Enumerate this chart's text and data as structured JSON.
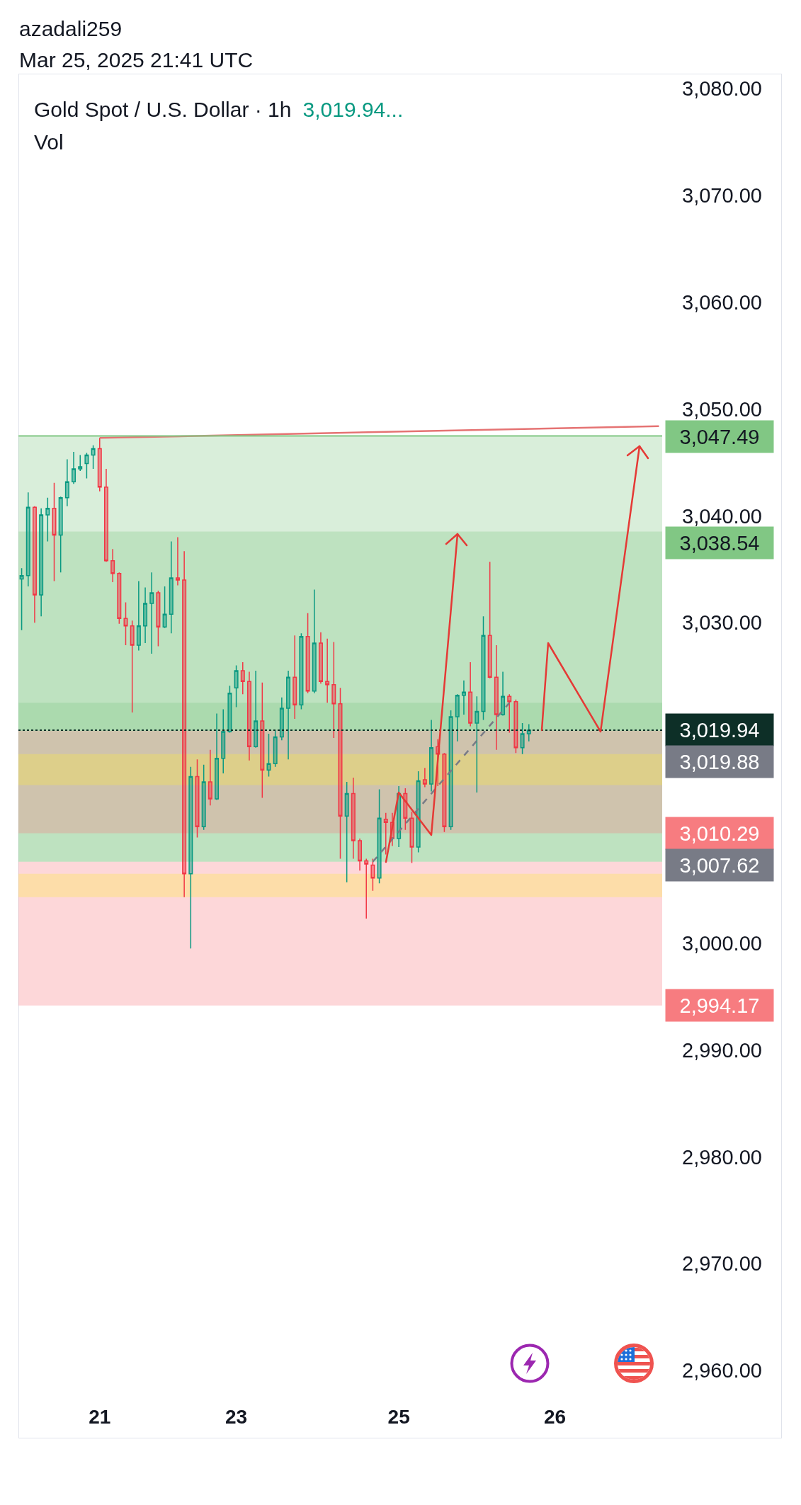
{
  "chart_data": {
    "type": "candlestick",
    "title": "Gold Spot / U.S. Dollar · 1h",
    "subtitle": "Vol",
    "annotations": [
      "azadali259",
      "Mar 25, 2025 21:41 UTC",
      "3,019.94..."
    ],
    "categories": [
      null,
      null,
      null,
      null,
      null,
      null,
      null,
      null,
      null,
      null,
      null,
      null,
      "21",
      null,
      null,
      null,
      null,
      null,
      null,
      null,
      null,
      null,
      null,
      null,
      null,
      null,
      null,
      null,
      null,
      null,
      null,
      null,
      null,
      "23",
      null,
      null,
      null,
      null,
      null,
      null,
      null,
      null,
      null,
      null,
      null,
      null,
      null,
      null,
      null,
      null,
      null,
      null,
      null,
      null,
      null,
      null,
      null,
      null,
      "25",
      null,
      null,
      null,
      null,
      null,
      null,
      null,
      null,
      null,
      null,
      null,
      null,
      null,
      null,
      null,
      null,
      null,
      null,
      null,
      null,
      null,
      null,
      null,
      "26",
      null,
      null,
      null,
      null,
      null,
      null,
      null,
      null,
      null,
      null,
      null,
      null,
      null,
      null,
      null,
      null
    ],
    "ohlc": [
      [
        3034.1,
        3035.1,
        3029.3,
        3034.4
      ],
      [
        3034.4,
        3042.2,
        3033.4,
        3040.8
      ],
      [
        3040.8,
        3040.9,
        3030.0,
        3032.6
      ],
      [
        3032.6,
        3040.7,
        3030.6,
        3040.1
      ],
      [
        3040.1,
        3041.7,
        3037.6,
        3040.7
      ],
      [
        3040.7,
        3043.1,
        3033.9,
        3038.2
      ],
      [
        3038.2,
        3041.8,
        3034.7,
        3041.7
      ],
      [
        3041.7,
        3045.3,
        3040.9,
        3043.2
      ],
      [
        3043.2,
        3046.0,
        3043.0,
        3044.4
      ],
      [
        3044.4,
        3045.7,
        3044.2,
        3044.6
      ],
      [
        3044.9,
        3045.9,
        3043.5,
        3045.7
      ],
      [
        3045.7,
        3046.6,
        3044.4,
        3046.3
      ],
      [
        3046.3,
        3047.3,
        3042.3,
        3042.7
      ],
      [
        3042.7,
        3044.4,
        3035.7,
        3035.8
      ],
      [
        3035.8,
        3036.9,
        3033.8,
        3034.6
      ],
      [
        3034.6,
        3034.7,
        3029.9,
        3030.4
      ],
      [
        3030.4,
        3031.9,
        3027.9,
        3029.7
      ],
      [
        3029.7,
        3030.2,
        3021.6,
        3027.9
      ],
      [
        3027.9,
        3033.9,
        3027.4,
        3029.7
      ],
      [
        3029.7,
        3033.3,
        3028.1,
        3031.8
      ],
      [
        3031.8,
        3034.7,
        3027.1,
        3032.8
      ],
      [
        3032.8,
        3033.0,
        3027.8,
        3029.6
      ],
      [
        3029.6,
        3033.4,
        3029.5,
        3030.8
      ],
      [
        3030.8,
        3037.6,
        3029.0,
        3034.2
      ],
      [
        3034.2,
        3038.0,
        3033.5,
        3034.0
      ],
      [
        3034.0,
        3036.7,
        3004.3,
        3006.5
      ],
      [
        3006.5,
        3016.5,
        2999.5,
        3015.6
      ],
      [
        3015.6,
        3017.2,
        3009.9,
        3010.9
      ],
      [
        3010.9,
        3016.7,
        3010.6,
        3015.1
      ],
      [
        3015.1,
        3018.1,
        3012.9,
        3013.5
      ],
      [
        3013.5,
        3021.5,
        3013.4,
        3017.3
      ],
      [
        3017.3,
        3021.9,
        3015.9,
        3019.8
      ],
      [
        3019.8,
        3024.1,
        3019.7,
        3023.4
      ],
      [
        3023.9,
        3026.0,
        3022.1,
        3025.5
      ],
      [
        3025.5,
        3026.3,
        3023.3,
        3024.5
      ],
      [
        3024.5,
        3025.4,
        3017.1,
        3018.4
      ],
      [
        3018.4,
        3025.5,
        3018.3,
        3020.8
      ],
      [
        3020.8,
        3024.4,
        3013.6,
        3016.2
      ],
      [
        3016.2,
        3019.6,
        3015.6,
        3016.8
      ],
      [
        3016.8,
        3019.9,
        3016.5,
        3019.3
      ],
      [
        3019.3,
        3023.0,
        3019.0,
        3022.0
      ],
      [
        3022.0,
        3025.5,
        3017.2,
        3024.9
      ],
      [
        3024.9,
        3028.8,
        3021.0,
        3022.3
      ],
      [
        3022.3,
        3029.0,
        3021.9,
        3028.7
      ],
      [
        3028.7,
        3030.9,
        3023.4,
        3023.6
      ],
      [
        3023.6,
        3033.1,
        3023.4,
        3028.1
      ],
      [
        3028.1,
        3029.1,
        3024.3,
        3024.5
      ],
      [
        3024.5,
        3028.5,
        3022.5,
        3024.2
      ],
      [
        3024.2,
        3028.2,
        3019.2,
        3022.4
      ],
      [
        3022.4,
        3023.9,
        3007.9,
        3011.9
      ],
      [
        3011.9,
        3015.1,
        3005.7,
        3014.0
      ],
      [
        3014.0,
        3015.5,
        3007.9,
        3009.6
      ],
      [
        3009.6,
        3009.8,
        3006.8,
        3007.7
      ],
      [
        3007.7,
        3007.9,
        3002.3,
        3007.4
      ],
      [
        3007.3,
        3007.9,
        3004.9,
        3006.1
      ],
      [
        3006.1,
        3014.4,
        3005.6,
        3011.7
      ],
      [
        3011.6,
        3012.2,
        3008.3,
        3011.3
      ],
      [
        3011.3,
        3012.2,
        3009.1,
        3009.8
      ],
      [
        3009.8,
        3014.7,
        3009.0,
        3014.0
      ],
      [
        3014.0,
        3014.5,
        3010.6,
        3011.7
      ],
      [
        3011.7,
        3012.3,
        3007.5,
        3009.0
      ],
      [
        3009.0,
        3016.1,
        3008.5,
        3015.2
      ],
      [
        3015.3,
        3016.4,
        3014.6,
        3014.9
      ],
      [
        3014.9,
        3020.9,
        3014.2,
        3018.3
      ],
      [
        3018.4,
        3019.1,
        3014.7,
        3017.7
      ],
      [
        3017.7,
        3017.8,
        3010.4,
        3010.9
      ],
      [
        3010.9,
        3021.8,
        3010.6,
        3021.2
      ],
      [
        3021.2,
        3023.3,
        3018.9,
        3023.2
      ],
      [
        3023.2,
        3024.6,
        3021.4,
        3023.5
      ],
      [
        3023.5,
        3026.3,
        3020.3,
        3020.6
      ],
      [
        3020.6,
        3023.1,
        3014.1,
        3021.7
      ],
      [
        3021.7,
        3030.6,
        3020.9,
        3028.8
      ],
      [
        3028.8,
        3035.7,
        3024.8,
        3024.9
      ],
      [
        3024.9,
        3027.9,
        3018.1,
        3021.4
      ],
      [
        3021.4,
        3025.4,
        3021.3,
        3023.1
      ],
      [
        3023.1,
        3023.3,
        3019.7,
        3022.6
      ],
      [
        3022.6,
        3022.8,
        3017.8,
        3018.3
      ],
      [
        3018.3,
        3020.6,
        3017.7,
        3019.6
      ],
      [
        3019.6,
        3020.5,
        3018.9,
        3019.94
      ],
      null,
      null,
      null,
      null,
      null,
      null,
      null,
      null,
      null,
      null,
      null,
      null,
      null,
      null,
      null,
      null,
      null,
      null,
      null,
      null
    ],
    "colors": [
      "#089981",
      "#089981",
      "#f23645",
      "#089981",
      "#089981",
      "#f23645",
      "#089981",
      "#089981",
      "#089981",
      "#089981",
      "#089981",
      "#089981",
      "#f23645",
      "#f23645",
      "#f23645",
      "#f23645",
      "#f23645",
      "#f23645",
      "#089981",
      "#089981",
      "#089981",
      "#f23645",
      "#089981",
      "#089981",
      "#f23645",
      "#f23645",
      "#089981",
      "#f23645",
      "#089981",
      "#f23645",
      "#089981",
      "#089981",
      "#089981",
      "#089981",
      "#f23645",
      "#f23645",
      "#089981",
      "#f23645",
      "#089981",
      "#089981",
      "#089981",
      "#089981",
      "#f23645",
      "#089981",
      "#f23645",
      "#089981",
      "#f23645",
      "#f23645",
      "#f23645",
      "#f23645",
      "#089981",
      "#f23645",
      "#f23645",
      "#f23645",
      "#f23645",
      "#089981",
      "#f23645",
      "#f23645",
      "#089981",
      "#f23645",
      "#f23645",
      "#089981",
      "#f23645",
      "#089981",
      "#f23645",
      "#f23645",
      "#089981",
      "#089981",
      "#089981",
      "#f23645",
      "#089981",
      "#089981",
      "#f23645",
      "#f23645",
      "#089981",
      "#f23645",
      "#f23645",
      "#089981",
      "#089981",
      null,
      null,
      null,
      null,
      null,
      null,
      null,
      null,
      null,
      null,
      null,
      null,
      null,
      null,
      null,
      null,
      null,
      null,
      null,
      null
    ],
    "ylim": [
      2960,
      3081.4
    ],
    "yticks": [
      {
        "value": 2960,
        "label": "2,960.00"
      },
      {
        "value": 2970,
        "label": "2,970.00"
      },
      {
        "value": 2980,
        "label": "2,980.00"
      },
      {
        "value": 2990,
        "label": "2,990.00"
      },
      {
        "value": 3000,
        "label": "3,000.00"
      },
      {
        "value": 3030,
        "label": "3,030.00"
      },
      {
        "value": 3040,
        "label": "3,040.00"
      },
      {
        "value": 3050,
        "label": "3,050.00"
      },
      {
        "value": 3060,
        "label": "3,060.00"
      },
      {
        "value": 3070,
        "label": "3,070.00"
      },
      {
        "value": 3080,
        "label": "3,080.00"
      }
    ],
    "series": [
      {
        "type": "line",
        "color": "#e57373",
        "values": [
          null,
          null,
          null,
          null,
          null,
          null,
          null,
          null,
          null,
          null,
          null,
          null,
          3047.3,
          null,
          null,
          null,
          null,
          null,
          null,
          null,
          null,
          null,
          null,
          null,
          null,
          null,
          null,
          null,
          null,
          null,
          null,
          null,
          null,
          null,
          null,
          null,
          null,
          null,
          null,
          null,
          null,
          null,
          null,
          null,
          null,
          null,
          null,
          null,
          null,
          null,
          null,
          null,
          null,
          null,
          null,
          null,
          null,
          null,
          null,
          null,
          null,
          null,
          null,
          null,
          null,
          null,
          null,
          null,
          null,
          null,
          null,
          null,
          null,
          null,
          null,
          null,
          null,
          null,
          null,
          null,
          null,
          null,
          null,
          null,
          null,
          null,
          null,
          null,
          null,
          null,
          null,
          null,
          null,
          null,
          null,
          null,
          null,
          null,
          3048.4
        ]
      },
      {
        "type": "line",
        "color": "#787b86",
        "line_style": "dashed",
        "values": [
          null,
          null,
          null,
          null,
          null,
          null,
          null,
          null,
          null,
          null,
          null,
          null,
          null,
          null,
          null,
          null,
          null,
          null,
          null,
          null,
          null,
          null,
          null,
          null,
          null,
          null,
          null,
          null,
          null,
          null,
          null,
          null,
          null,
          null,
          null,
          null,
          null,
          null,
          null,
          null,
          null,
          null,
          null,
          null,
          null,
          null,
          null,
          null,
          null,
          null,
          null,
          null,
          null,
          null,
          3007.62,
          null,
          null,
          null,
          null,
          null,
          null,
          null,
          null,
          null,
          null,
          null,
          null,
          null,
          null,
          null,
          null,
          null,
          null,
          null,
          null,
          3022.5,
          null,
          null,
          null,
          null,
          null,
          null,
          null,
          null,
          null,
          null,
          null,
          null,
          null,
          null,
          null,
          null,
          null,
          null,
          null,
          null,
          null,
          null,
          null
        ]
      }
    ],
    "bands": [
      {
        "axis": "y",
        "from": 3038.54,
        "to": 3007.62,
        "label": "3,038.54",
        "color": "#81c784"
      },
      {
        "axis": "y",
        "from": 3007.62,
        "to": 3022.5,
        "label": "3,007.62",
        "color": "#81c784"
      },
      {
        "axis": "y",
        "from": 2994.17,
        "to": 3007.62,
        "label": "2,994.17",
        "color": "#f77c80"
      },
      {
        "axis": "y",
        "from": 3019.88,
        "to": 3047.49,
        "label": "3,019.88",
        "color": "#81c784"
      },
      {
        "axis": "y",
        "from": 3010.29,
        "to": 3019.88,
        "label": "3,010.29",
        "color": "#f77c80"
      },
      {
        "axis": "y",
        "from": 3014.8,
        "to": 3017.7,
        "color": "#ffeb3b"
      },
      {
        "axis": "y",
        "from": 3004.3,
        "to": 3006.5,
        "color": "#ffeb3b"
      }
    ],
    "ref_lines": [
      {
        "axis": "y",
        "value": 3019.94,
        "label": "3,019.94",
        "line_style": "dotted",
        "color": "#0d2f27"
      },
      {
        "axis": "y",
        "value": 3047.49,
        "label": "3,047.49",
        "color": "#81c784"
      }
    ]
  }
}
